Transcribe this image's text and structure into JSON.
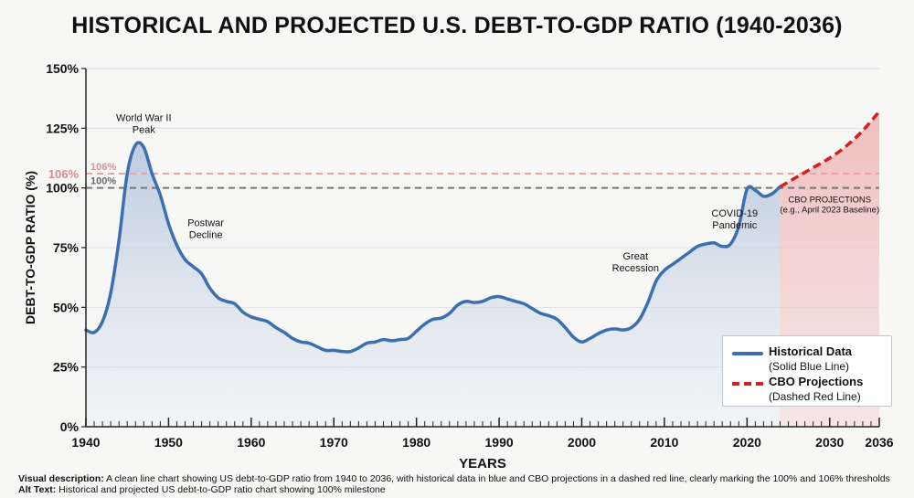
{
  "title": "HISTORICAL AND PROJECTED U.S. DEBT-TO-GDP RATIO (1940-2036)",
  "chart_data": {
    "type": "line",
    "xlabel": "YEARS",
    "ylabel": "DEBT-TO-GDP RATIO (%)",
    "xlim": [
      1940,
      2036
    ],
    "ylim": [
      0,
      150
    ],
    "x_tick_labels": [
      "1940",
      "1950",
      "1960",
      "1970",
      "1980",
      "1990",
      "2000",
      "2010",
      "2020",
      "2030",
      "2036"
    ],
    "x_tick_values": [
      1940,
      1950,
      1960,
      1970,
      1980,
      1990,
      2000,
      2010,
      2020,
      2030,
      2036
    ],
    "y_tick_labels": [
      "0%",
      "25%",
      "50%",
      "75%",
      "100%",
      "125%",
      "150%"
    ],
    "y_tick_values": [
      0,
      25,
      50,
      75,
      100,
      125,
      150
    ],
    "grid": "horizontal",
    "series": [
      {
        "name": "Historical Data",
        "style": "solid",
        "color": "#3b6fb0",
        "x": [
          1940,
          1941,
          1942,
          1943,
          1944,
          1945,
          1946,
          1947,
          1948,
          1949,
          1950,
          1951,
          1952,
          1953,
          1954,
          1955,
          1956,
          1957,
          1958,
          1959,
          1960,
          1961,
          1962,
          1963,
          1964,
          1965,
          1966,
          1967,
          1968,
          1969,
          1970,
          1971,
          1972,
          1973,
          1974,
          1975,
          1976,
          1977,
          1978,
          1979,
          1980,
          1981,
          1982,
          1983,
          1984,
          1985,
          1986,
          1987,
          1988,
          1989,
          1990,
          1991,
          1992,
          1993,
          1994,
          1995,
          1996,
          1997,
          1998,
          1999,
          2000,
          2001,
          2002,
          2003,
          2004,
          2005,
          2006,
          2007,
          2008,
          2009,
          2010,
          2011,
          2012,
          2013,
          2014,
          2015,
          2016,
          2017,
          2018,
          2019,
          2020,
          2021,
          2022,
          2023,
          2024
        ],
        "values": [
          40.5,
          39.5,
          44,
          56,
          78,
          106,
          118,
          117,
          106,
          97,
          85,
          76,
          70,
          67,
          64,
          58,
          54,
          52.5,
          51.5,
          48,
          46,
          45,
          44,
          41.5,
          39.5,
          37,
          35.5,
          35,
          33.5,
          32,
          32,
          31.5,
          31.5,
          33,
          35,
          35.5,
          36.5,
          36,
          36.5,
          37,
          40,
          43,
          45,
          45.5,
          47.5,
          51,
          52.5,
          52,
          52.5,
          54,
          54.5,
          53.5,
          52.5,
          51.5,
          49.5,
          47.5,
          46.5,
          45,
          41.5,
          37.5,
          35.5,
          37,
          39,
          40.5,
          41,
          40.5,
          41.5,
          45,
          52,
          61,
          65.5,
          68,
          70.5,
          73,
          75.5,
          76.5,
          77,
          75.5,
          76.5,
          84,
          99.5,
          99,
          96.5,
          97.5,
          100.5
        ]
      },
      {
        "name": "CBO Projections",
        "style": "dashed",
        "color": "#d42020",
        "x": [
          2024,
          2026,
          2028,
          2030,
          2032,
          2034,
          2036
        ],
        "values": [
          100.5,
          104.5,
          108.5,
          112.5,
          117.5,
          124,
          132
        ]
      }
    ],
    "reference_lines": [
      {
        "value": 106,
        "axis_label": "106%",
        "inline_label": "106%",
        "color": "#e8a4a4"
      },
      {
        "value": 100,
        "axis_label": "100%",
        "inline_label": "100%",
        "color": "#777777"
      }
    ],
    "annotations": [
      {
        "lines": [
          "World War II",
          "Peak"
        ],
        "x": 1947,
        "y": 128
      },
      {
        "lines": [
          "Postwar",
          "Decline"
        ],
        "x": 1954.5,
        "y": 84
      },
      {
        "lines": [
          "Great",
          "Recession"
        ],
        "x": 2006.5,
        "y": 70
      },
      {
        "lines": [
          "COVID-19",
          "Pandemic"
        ],
        "x": 2018.5,
        "y": 88
      },
      {
        "lines": [
          "CBO PROJECTIONS",
          "(e.g., April 2023 Baseline)"
        ],
        "x": 2030,
        "y": 94
      }
    ],
    "legend": {
      "position": "bottom-right",
      "entries": [
        {
          "name": "Historical Data",
          "sub": "(Solid Blue Line)"
        },
        {
          "name": "CBO Projections",
          "sub": "(Dashed Red Line)"
        }
      ]
    },
    "colors": {
      "historical": "#3b6fb0",
      "projection": "#d42020",
      "historical_fill": "#c7d3e4",
      "projection_fill": "#f3c9c9",
      "threshold_106": "#e8a4a4",
      "threshold_100": "#777777"
    }
  },
  "footer": {
    "visual_description_label": "Visual description:",
    "visual_description": "A clean line chart showing US debt-to-GDP ratio from 1940 to 2036, with historical data in blue and CBO projections in a dashed red line, clearly marking the 100% and 106% thresholds",
    "alt_text_label": "Alt Text:",
    "alt_text": "Historical and projected US debt-to-GDP ratio chart showing 100% milestone"
  }
}
